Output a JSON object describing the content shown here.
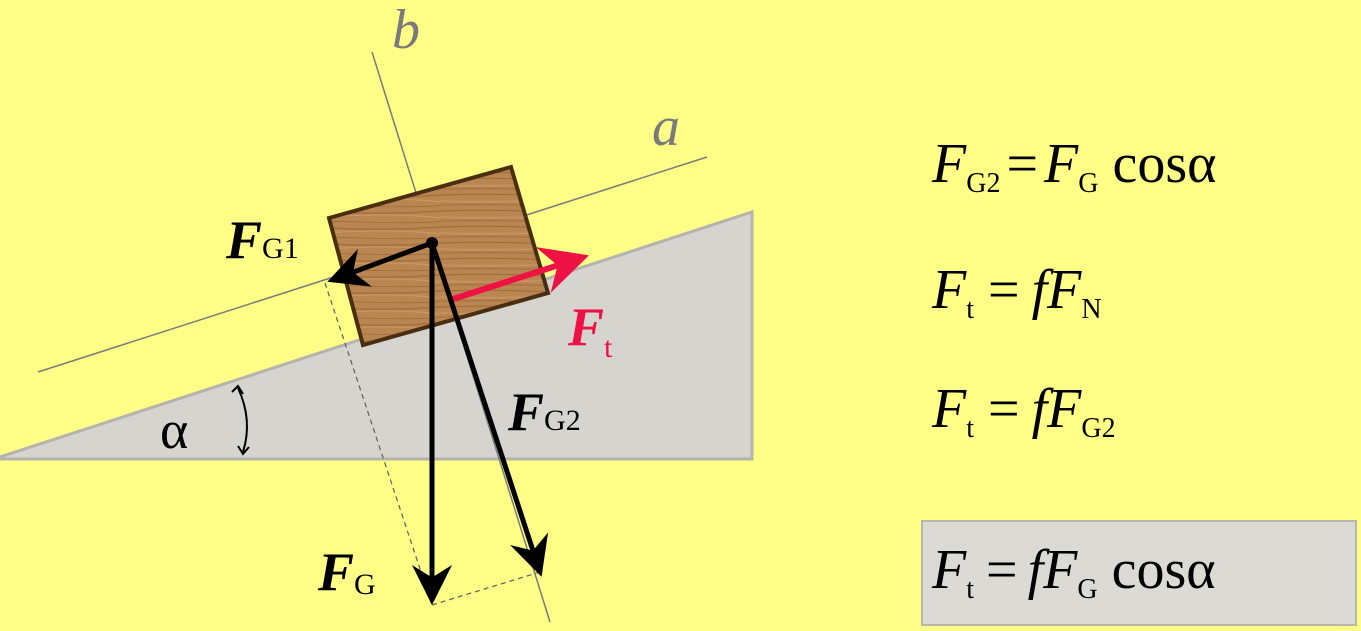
{
  "colors": {
    "background": "#ffff88",
    "incline": "#d6d4cf",
    "friction_arrow": "#ee1144",
    "force_arrows": "#000000",
    "axis_lines": "#7a7a7a",
    "result_box": "#dcdad4"
  },
  "diagram": {
    "axes": {
      "a": "a",
      "b": "b"
    },
    "angle_label": "α",
    "forces": {
      "gravity": {
        "symbol": "F",
        "subscript": "G"
      },
      "parallel": {
        "symbol": "F",
        "subscript": "G1"
      },
      "normal": {
        "symbol": "F",
        "subscript": "G2"
      },
      "friction": {
        "symbol": "F",
        "subscript": "t"
      }
    }
  },
  "equations": {
    "eq1": {
      "lhs": "F",
      "lhs_sub": "G2",
      "eq": "=",
      "r1": "F",
      "r1_sub": "G",
      "tail": " cosα"
    },
    "eq2": {
      "lhs": "F",
      "lhs_sub": "t",
      "eq": "=",
      "coef": "f",
      "r1": "F",
      "r1_sub": "N"
    },
    "eq3": {
      "lhs": "F",
      "lhs_sub": "t",
      "eq": "=",
      "coef": "f",
      "r1": "F",
      "r1_sub": "G2"
    },
    "result": {
      "lhs": "F",
      "lhs_sub": "t",
      "eq": "=",
      "coef": "f",
      "r1": "F",
      "r1_sub": "G",
      "tail": " cosα"
    }
  }
}
